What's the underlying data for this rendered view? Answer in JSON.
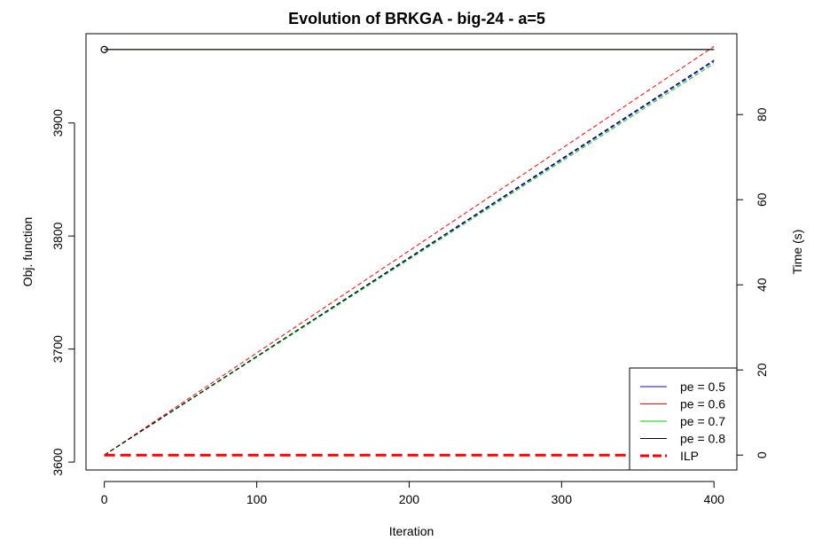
{
  "chart_data": {
    "type": "line",
    "title": "Evolution of BRKGA - big-24 - a=5",
    "xlabel": "Iteration",
    "ylabel": "Obj. function",
    "y2label": "Time (s)",
    "xlim": [
      -12,
      415
    ],
    "ylim": [
      3593,
      3979
    ],
    "y2lim": [
      -3.5,
      99
    ],
    "x_ticks": [
      0,
      100,
      200,
      300,
      400
    ],
    "y_ticks": [
      3600,
      3700,
      3800,
      3900
    ],
    "y2_ticks": [
      0,
      20,
      40,
      60,
      80
    ],
    "objective_series": [
      {
        "name": "pe = 0.5",
        "color": "#0000ff",
        "x": [
          0,
          400
        ],
        "y": [
          3965,
          3965
        ]
      },
      {
        "name": "pe = 0.6",
        "color": "#ff0000",
        "x": [
          0,
          400
        ],
        "y": [
          3965,
          3965
        ]
      },
      {
        "name": "pe = 0.7",
        "color": "#00cc00",
        "x": [
          0,
          400
        ],
        "y": [
          3965,
          3965
        ]
      },
      {
        "name": "pe = 0.8",
        "color": "#000000",
        "x": [
          0,
          400
        ],
        "y": [
          3965,
          3965
        ],
        "marker_at_start": true
      }
    ],
    "time_series": [
      {
        "name": "pe = 0.5",
        "color": "#0000ff",
        "dash": "5,3",
        "x": [
          0,
          400
        ],
        "y": [
          0,
          92.5
        ]
      },
      {
        "name": "pe = 0.6",
        "color": "#ff0000",
        "dash": "5,3",
        "x": [
          0,
          400
        ],
        "y": [
          0,
          96
        ]
      },
      {
        "name": "pe = 0.7",
        "color": "#00cc00",
        "dash": "5,3",
        "x": [
          0,
          400
        ],
        "y": [
          0,
          92
        ]
      },
      {
        "name": "pe = 0.8",
        "color": "#000000",
        "dash": "5,3",
        "x": [
          0,
          400
        ],
        "y": [
          0,
          92.8
        ]
      }
    ],
    "ilp": {
      "name": "ILP",
      "color": "#ff0000",
      "x": [
        0,
        400
      ],
      "time": [
        0,
        0
      ]
    },
    "legend": {
      "position": "bottom-right",
      "entries": [
        {
          "label": "pe = 0.5",
          "color": "#0000ff",
          "style": "solid"
        },
        {
          "label": "pe = 0.6",
          "color": "#ff0000",
          "style": "solid"
        },
        {
          "label": "pe = 0.7",
          "color": "#00cc00",
          "style": "solid"
        },
        {
          "label": "pe = 0.8",
          "color": "#000000",
          "style": "solid"
        },
        {
          "label": "ILP",
          "color": "#ff0000",
          "style": "dashed-thick"
        }
      ]
    },
    "grid": false
  }
}
